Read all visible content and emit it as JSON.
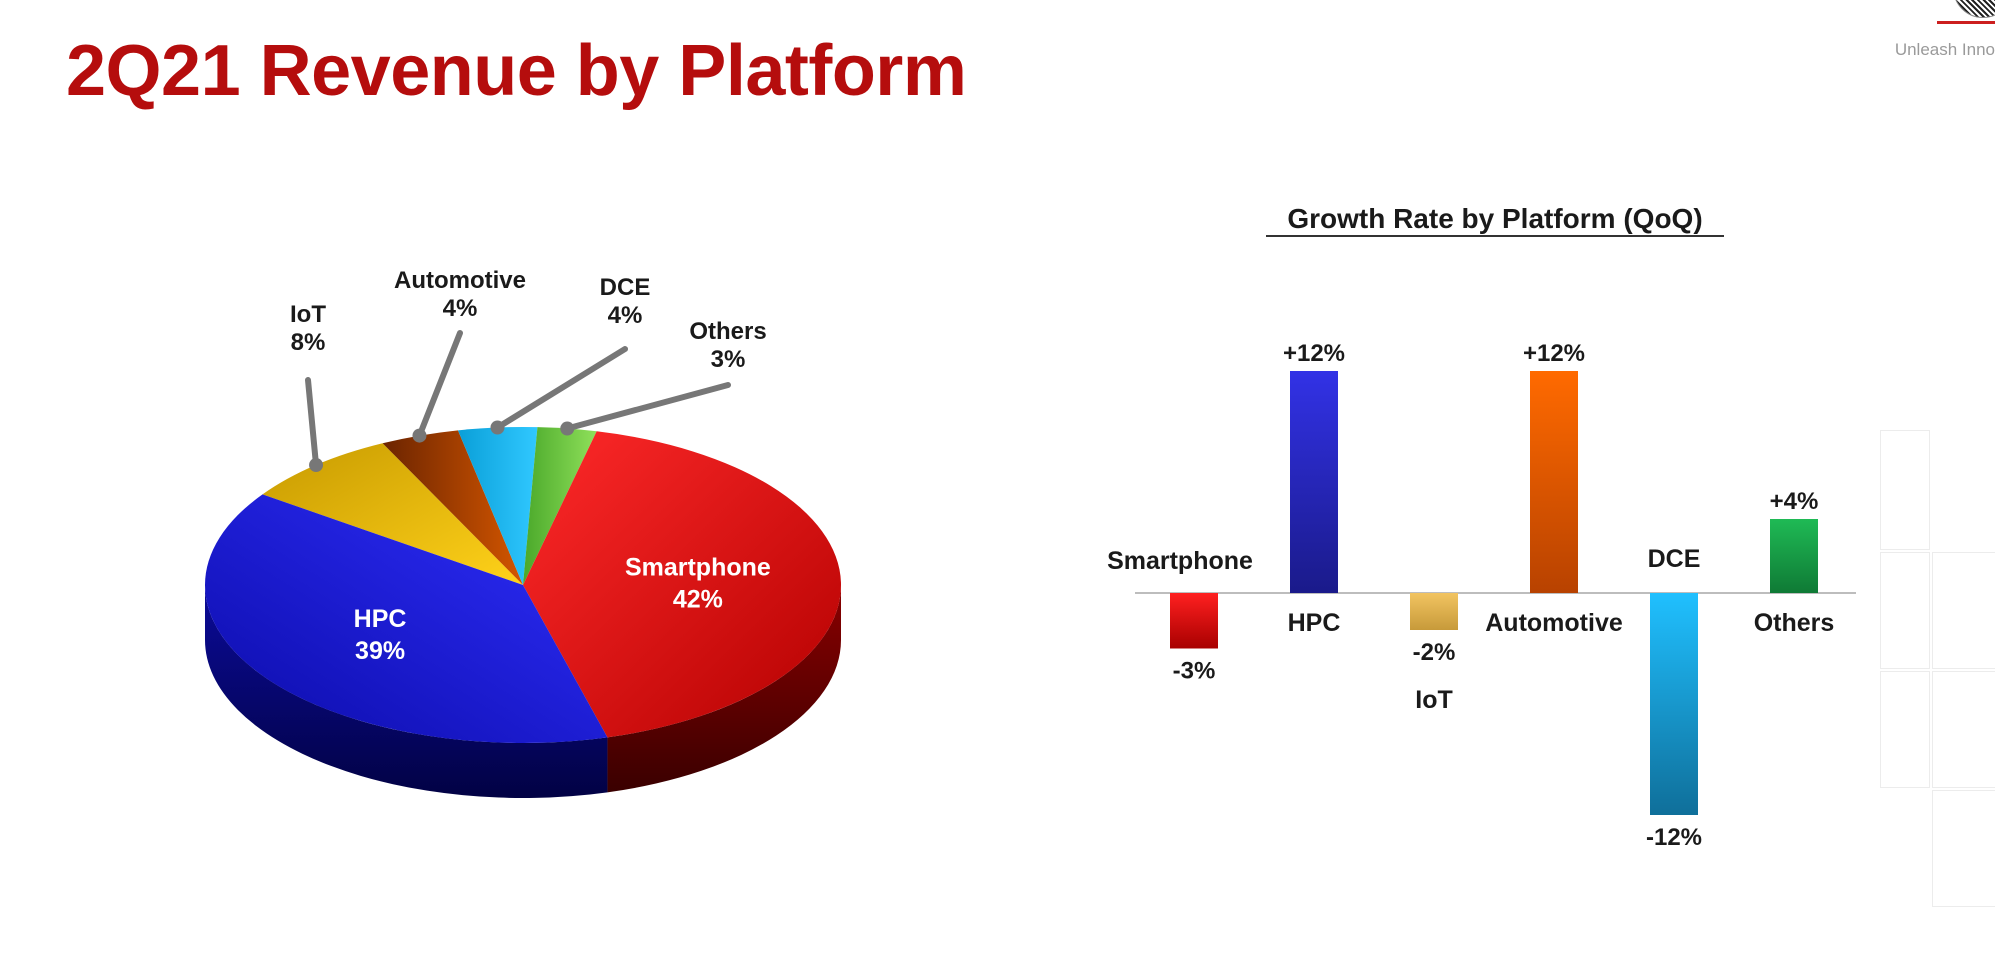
{
  "slide": {
    "title": "2Q21 Revenue by Platform",
    "tagline": "Unleash Inno"
  },
  "colors": {
    "title": "#b50d0d",
    "smartphone": "#e60000",
    "hpc": "#1a1ad0",
    "iot": "#e8b400",
    "automotive": "#c44a00",
    "dce": "#1ab2ee",
    "others": "#5fbf3a"
  },
  "chart_data": [
    {
      "type": "pie",
      "title": "",
      "slices": [
        {
          "name": "Smartphone",
          "value": 42,
          "label": "42%",
          "color": "#e60000"
        },
        {
          "name": "HPC",
          "value": 39,
          "label": "39%",
          "color": "#1a1ad0"
        },
        {
          "name": "IoT",
          "value": 8,
          "label": "8%",
          "color": "#e8b400"
        },
        {
          "name": "Automotive",
          "value": 4,
          "label": "4%",
          "color": "#c44a00"
        },
        {
          "name": "DCE",
          "value": 4,
          "label": "4%",
          "color": "#1ab2ee"
        },
        {
          "name": "Others",
          "value": 3,
          "label": "3%",
          "color": "#5fbf3a"
        }
      ]
    },
    {
      "type": "bar",
      "title": "Growth Rate by Platform (QoQ)",
      "categories": [
        "Smartphone",
        "HPC",
        "IoT",
        "Automotive",
        "DCE",
        "Others"
      ],
      "values": [
        -3,
        12,
        -2,
        12,
        -12,
        4
      ],
      "value_labels": [
        "-3%",
        "+12%",
        "-2%",
        "+12%",
        "-12%",
        "+4%"
      ],
      "colors": [
        "#e60000",
        "#2b2bd6",
        "#e8b64a",
        "#ec5b00",
        "#19b4ee",
        "#16a34a"
      ],
      "ylim": [
        -12,
        12
      ],
      "grid": false,
      "legend": "none"
    }
  ]
}
